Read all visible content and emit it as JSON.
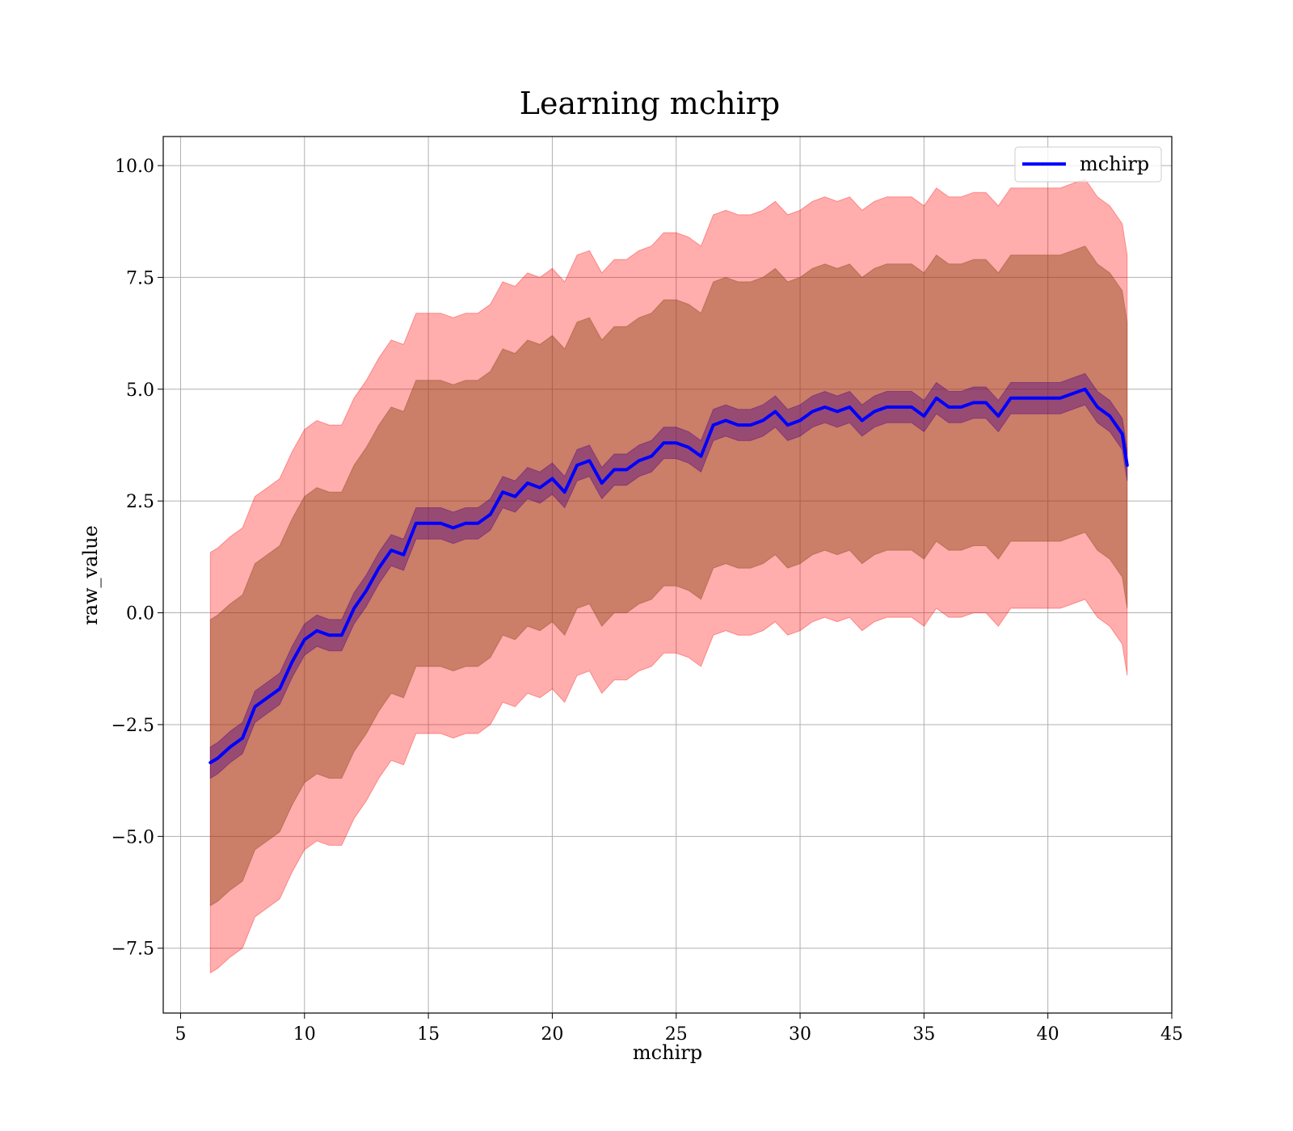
{
  "chart_data": {
    "type": "line",
    "title": "Learning mchirp",
    "xlabel": "mchirp",
    "ylabel": "raw_value",
    "xlim": [
      4.3,
      45
    ],
    "ylim": [
      -8.95,
      10.65
    ],
    "xticks": [
      5,
      10,
      15,
      20,
      25,
      30,
      35,
      40,
      45
    ],
    "yticks": [
      10.0,
      7.5,
      5.0,
      2.5,
      0.0,
      -2.5,
      -5.0,
      -7.5
    ],
    "xtick_labels": [
      "5",
      "10",
      "15",
      "20",
      "25",
      "30",
      "35",
      "40",
      "45"
    ],
    "ytick_labels": [
      "10.0",
      "7.5",
      "5.0",
      "2.5",
      "0.0",
      "−2.5",
      "−5.0",
      "−7.5"
    ],
    "grid": true,
    "legend": {
      "position": "top-right",
      "entries": [
        "mchirp"
      ]
    },
    "colors": {
      "line": "#0000ff",
      "band_outer": "#ff0000",
      "band_middle": "#8b4513",
      "band_inner": "#4b0082"
    },
    "x": [
      6.2,
      6.5,
      7.0,
      7.5,
      8.0,
      8.5,
      9.0,
      9.5,
      10.0,
      10.5,
      11.0,
      11.5,
      12.0,
      12.5,
      13.0,
      13.5,
      14.0,
      14.5,
      15.0,
      15.5,
      16.0,
      16.5,
      17.0,
      17.5,
      18.0,
      18.5,
      19.0,
      19.5,
      20.0,
      20.5,
      21.0,
      21.5,
      22.0,
      22.5,
      23.0,
      23.5,
      24.0,
      24.5,
      25.0,
      25.5,
      26.0,
      26.5,
      27.0,
      27.5,
      28.0,
      28.5,
      29.0,
      29.5,
      30.0,
      30.5,
      31.0,
      31.5,
      32.0,
      32.5,
      33.0,
      33.5,
      34.0,
      34.5,
      35.0,
      35.5,
      36.0,
      36.5,
      37.0,
      37.5,
      38.0,
      38.5,
      39.0,
      39.5,
      40.0,
      40.5,
      41.0,
      41.5,
      42.0,
      42.5,
      43.0,
      43.2
    ],
    "series": [
      {
        "name": "mchirp",
        "mean": [
          -3.35,
          -3.25,
          -3.0,
          -2.8,
          -2.1,
          -1.9,
          -1.7,
          -1.1,
          -0.6,
          -0.4,
          -0.5,
          -0.5,
          0.1,
          0.5,
          1.0,
          1.4,
          1.3,
          2.0,
          2.0,
          2.0,
          1.9,
          2.0,
          2.0,
          2.2,
          2.7,
          2.6,
          2.9,
          2.8,
          3.0,
          2.7,
          3.3,
          3.4,
          2.9,
          3.2,
          3.2,
          3.4,
          3.5,
          3.8,
          3.8,
          3.7,
          3.5,
          4.2,
          4.3,
          4.2,
          4.2,
          4.3,
          4.5,
          4.2,
          4.3,
          4.5,
          4.6,
          4.5,
          4.6,
          4.3,
          4.5,
          4.6,
          4.6,
          4.6,
          4.4,
          4.8,
          4.6,
          4.6,
          4.7,
          4.7,
          4.4,
          4.8,
          4.8,
          4.8,
          4.8,
          4.8,
          4.9,
          5.0,
          4.6,
          4.4,
          4.0,
          3.3
        ],
        "inner_band": [
          0.35,
          0.35,
          0.35,
          0.35,
          0.35,
          0.35,
          0.35,
          0.35,
          0.35,
          0.35,
          0.35,
          0.35,
          0.35,
          0.35,
          0.35,
          0.35,
          0.35,
          0.35,
          0.35,
          0.35,
          0.35,
          0.35,
          0.35,
          0.35,
          0.35,
          0.35,
          0.35,
          0.35,
          0.35,
          0.35,
          0.35,
          0.35,
          0.35,
          0.35,
          0.35,
          0.35,
          0.35,
          0.35,
          0.35,
          0.35,
          0.35,
          0.35,
          0.35,
          0.35,
          0.35,
          0.35,
          0.35,
          0.35,
          0.35,
          0.35,
          0.35,
          0.35,
          0.35,
          0.35,
          0.35,
          0.35,
          0.35,
          0.35,
          0.35,
          0.35,
          0.35,
          0.35,
          0.35,
          0.35,
          0.35,
          0.35,
          0.35,
          0.35,
          0.35,
          0.35,
          0.35,
          0.35,
          0.35,
          0.35,
          0.35,
          0.35
        ],
        "middle_band": [
          3.2,
          3.2,
          3.2,
          3.2,
          3.2,
          3.2,
          3.2,
          3.2,
          3.2,
          3.2,
          3.2,
          3.2,
          3.2,
          3.2,
          3.2,
          3.2,
          3.2,
          3.2,
          3.2,
          3.2,
          3.2,
          3.2,
          3.2,
          3.2,
          3.2,
          3.2,
          3.2,
          3.2,
          3.2,
          3.2,
          3.2,
          3.2,
          3.2,
          3.2,
          3.2,
          3.2,
          3.2,
          3.2,
          3.2,
          3.2,
          3.2,
          3.2,
          3.2,
          3.2,
          3.2,
          3.2,
          3.2,
          3.2,
          3.2,
          3.2,
          3.2,
          3.2,
          3.2,
          3.2,
          3.2,
          3.2,
          3.2,
          3.2,
          3.2,
          3.2,
          3.2,
          3.2,
          3.2,
          3.2,
          3.2,
          3.2,
          3.2,
          3.2,
          3.2,
          3.2,
          3.2,
          3.2,
          3.2,
          3.2,
          3.2,
          3.2
        ],
        "outer_band": [
          4.7,
          4.7,
          4.7,
          4.7,
          4.7,
          4.7,
          4.7,
          4.7,
          4.7,
          4.7,
          4.7,
          4.7,
          4.7,
          4.7,
          4.7,
          4.7,
          4.7,
          4.7,
          4.7,
          4.7,
          4.7,
          4.7,
          4.7,
          4.7,
          4.7,
          4.7,
          4.7,
          4.7,
          4.7,
          4.7,
          4.7,
          4.7,
          4.7,
          4.7,
          4.7,
          4.7,
          4.7,
          4.7,
          4.7,
          4.7,
          4.7,
          4.7,
          4.7,
          4.7,
          4.7,
          4.7,
          4.7,
          4.7,
          4.7,
          4.7,
          4.7,
          4.7,
          4.7,
          4.7,
          4.7,
          4.7,
          4.7,
          4.7,
          4.7,
          4.7,
          4.7,
          4.7,
          4.7,
          4.7,
          4.7,
          4.7,
          4.7,
          4.7,
          4.7,
          4.7,
          4.7,
          4.7,
          4.7,
          4.7,
          4.7,
          4.7
        ]
      }
    ]
  }
}
